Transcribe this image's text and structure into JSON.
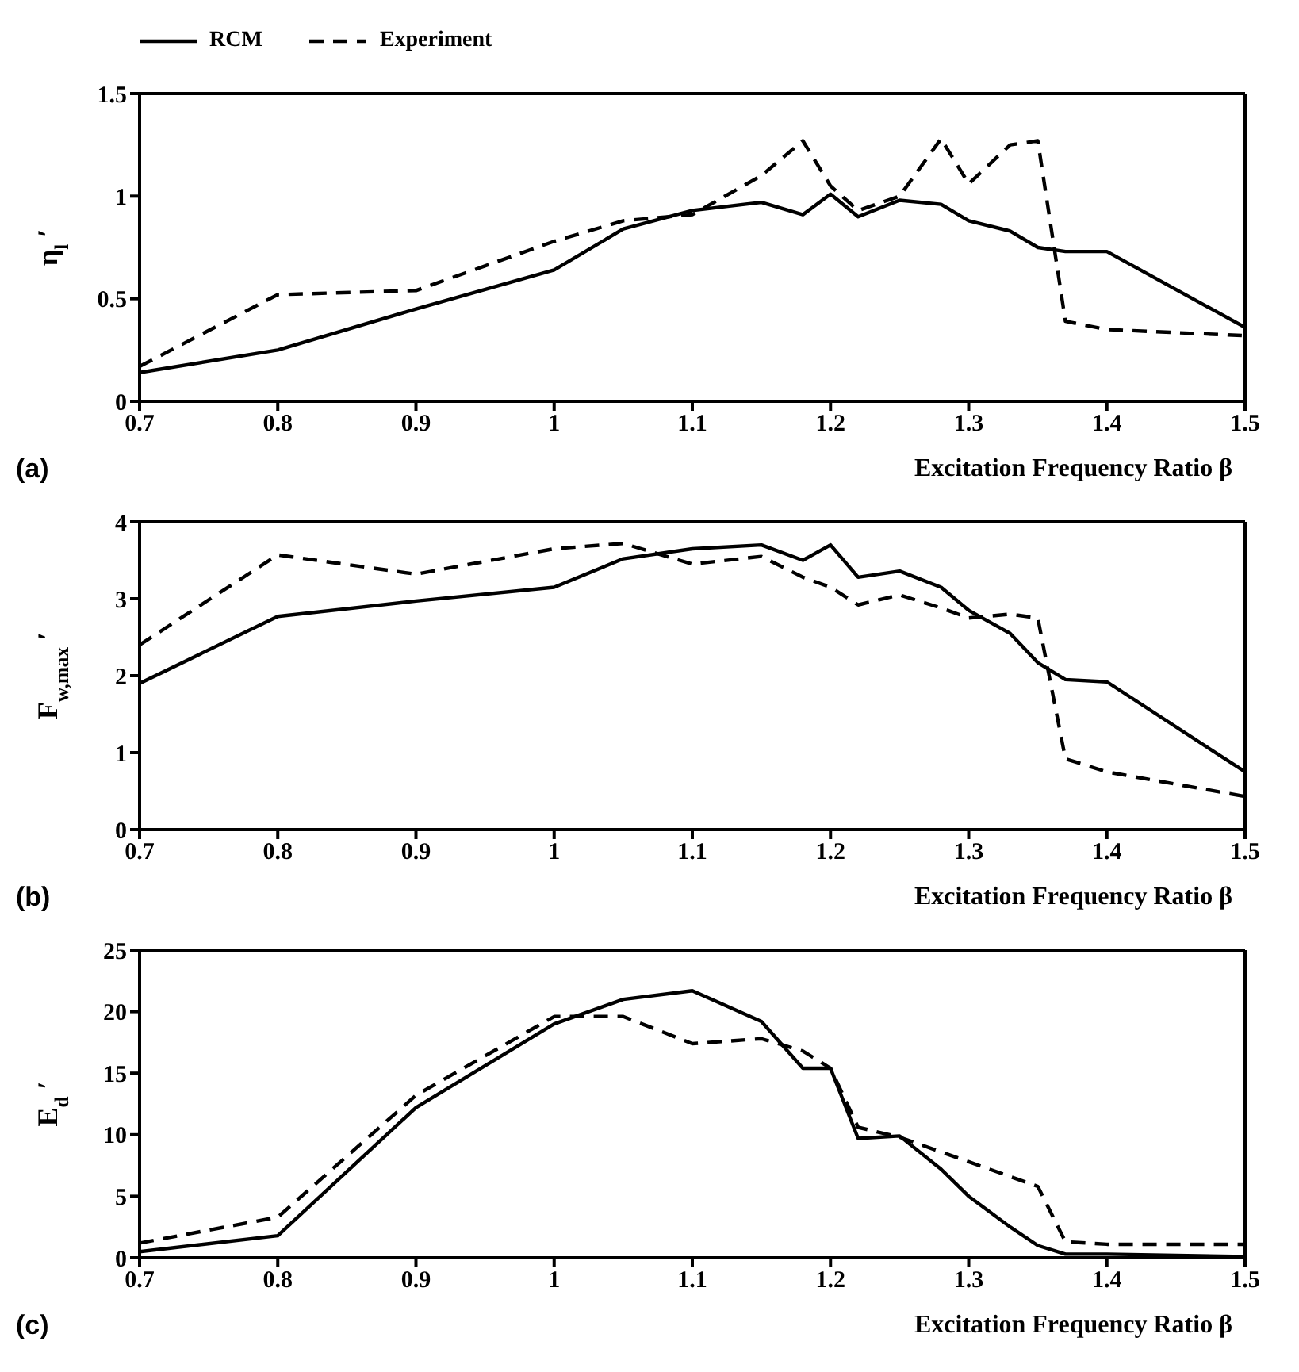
{
  "chart_data": [
    {
      "type": "line",
      "xlabel": "Excitation Frequency Ratio  β",
      "ylabel": "η$_{l}$′",
      "annotations": [
        "(a)"
      ],
      "legend": "top left",
      "x": [
        0.7,
        0.8,
        0.9,
        1.0,
        1.05,
        1.1,
        1.15,
        1.18,
        1.2,
        1.22,
        1.25,
        1.28,
        1.3,
        1.33,
        1.35,
        1.37,
        1.4,
        1.5
      ],
      "xlim": [
        0.7,
        1.5
      ],
      "xticks": [
        0.7,
        0.8,
        0.9,
        1,
        1.1,
        1.2,
        1.3,
        1.4,
        1.5
      ],
      "ylim": [
        0,
        1.5
      ],
      "yticks": [
        0,
        0.5,
        1,
        1.5
      ],
      "marker": "none",
      "series": [
        {
          "name": "RCM",
          "color": "#000000",
          "line_style": "solid",
          "values": [
            0.14,
            0.25,
            0.45,
            0.64,
            0.84,
            0.93,
            0.97,
            0.91,
            1.01,
            0.9,
            0.98,
            0.96,
            0.88,
            0.83,
            0.75,
            0.73,
            0.73,
            0.36
          ]
        },
        {
          "name": "Experiment",
          "color": "#000000",
          "line_style": "dashed",
          "values": [
            0.17,
            0.52,
            0.54,
            0.78,
            0.88,
            0.91,
            1.1,
            1.27,
            1.05,
            0.93,
            1.0,
            1.28,
            1.06,
            1.25,
            1.27,
            0.39,
            0.35,
            0.32
          ]
        }
      ]
    },
    {
      "type": "line",
      "xlabel": "Excitation Frequency Ratio  β",
      "ylabel": "F$_{w,max}$′",
      "annotations": [
        "(b)"
      ],
      "x": [
        0.7,
        0.8,
        0.9,
        1.0,
        1.05,
        1.1,
        1.15,
        1.18,
        1.2,
        1.22,
        1.25,
        1.28,
        1.3,
        1.33,
        1.35,
        1.37,
        1.4,
        1.5
      ],
      "xlim": [
        0.7,
        1.5
      ],
      "xticks": [
        0.7,
        0.8,
        0.9,
        1,
        1.1,
        1.2,
        1.3,
        1.4,
        1.5
      ],
      "ylim": [
        0,
        4
      ],
      "yticks": [
        0,
        1,
        2,
        3,
        4
      ],
      "marker": "none",
      "series": [
        {
          "color": "#000000",
          "line_style": "solid",
          "values": [
            1.9,
            2.77,
            2.97,
            3.15,
            3.52,
            3.65,
            3.7,
            3.5,
            3.7,
            3.28,
            3.36,
            3.15,
            2.85,
            2.55,
            2.17,
            1.95,
            1.92,
            0.75
          ]
        },
        {
          "color": "#000000",
          "line_style": "dashed",
          "values": [
            2.4,
            3.57,
            3.32,
            3.65,
            3.72,
            3.45,
            3.55,
            3.28,
            3.15,
            2.92,
            3.05,
            2.88,
            2.75,
            2.8,
            2.75,
            0.92,
            0.75,
            0.43
          ]
        }
      ]
    },
    {
      "type": "line",
      "xlabel": "Excitation Frequency Ratio  β",
      "ylabel": "E$_{d}$′",
      "annotations": [
        "(c)"
      ],
      "x": [
        0.7,
        0.8,
        0.9,
        1.0,
        1.05,
        1.1,
        1.15,
        1.18,
        1.2,
        1.22,
        1.25,
        1.28,
        1.3,
        1.33,
        1.35,
        1.37,
        1.4,
        1.5
      ],
      "xlim": [
        0.7,
        1.5
      ],
      "xticks": [
        0.7,
        0.8,
        0.9,
        1,
        1.1,
        1.2,
        1.3,
        1.4,
        1.5
      ],
      "ylim": [
        0,
        25
      ],
      "yticks": [
        0,
        5,
        10,
        15,
        20,
        25
      ],
      "marker": "none",
      "series": [
        {
          "color": "#000000",
          "line_style": "solid",
          "values": [
            0.5,
            1.8,
            12.2,
            19.0,
            21.0,
            21.7,
            19.2,
            15.4,
            15.4,
            9.7,
            9.9,
            7.2,
            5.0,
            2.5,
            1.0,
            0.3,
            0.3,
            0.1
          ]
        },
        {
          "color": "#000000",
          "line_style": "dashed",
          "values": [
            1.2,
            3.3,
            13.2,
            19.6,
            19.6,
            17.4,
            17.8,
            16.8,
            15.4,
            10.6,
            9.8,
            8.6,
            7.8,
            6.6,
            5.8,
            1.3,
            1.1,
            1.1
          ]
        }
      ]
    }
  ]
}
